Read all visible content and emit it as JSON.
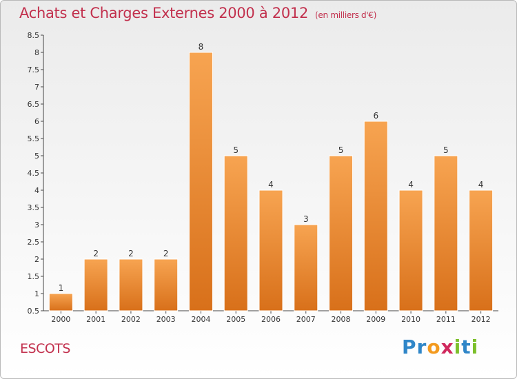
{
  "chart_data": {
    "type": "bar",
    "title": "Achats et Charges Externes 2000 à 2012",
    "subtitle": "(en milliers d'€)",
    "categories": [
      "2000",
      "2001",
      "2002",
      "2003",
      "2004",
      "2005",
      "2006",
      "2007",
      "2008",
      "2009",
      "2010",
      "2011",
      "2012"
    ],
    "values": [
      1,
      2,
      2,
      2,
      8,
      5,
      4,
      3,
      5,
      6,
      4,
      5,
      4
    ],
    "value_labels": [
      "1",
      "2",
      "2",
      "2",
      "8",
      "5",
      "4",
      "3",
      "5",
      "6",
      "4",
      "5",
      "4"
    ],
    "ylim": [
      0.5,
      8.5
    ],
    "yticks": [
      "0.5",
      "1",
      "1.5",
      "2",
      "2.5",
      "3",
      "3.5",
      "4",
      "4.5",
      "5",
      "5.5",
      "6",
      "6.5",
      "7",
      "7.5",
      "8",
      "8.5"
    ],
    "grid": false,
    "bar_color": "#f0913a",
    "xlabel": "",
    "ylabel": ""
  },
  "footer": {
    "place": "ESCOTS",
    "logo": {
      "p1": "Pr",
      "p2": "o",
      "p3": "x",
      "p4": "i",
      "p5": "t",
      "p6": "i"
    }
  },
  "colors": {
    "title": "#c2304d",
    "logo_blue": "#2f86c8",
    "logo_orange": "#f39a1f",
    "logo_pink": "#d0285d",
    "logo_green": "#7cbf2a"
  }
}
